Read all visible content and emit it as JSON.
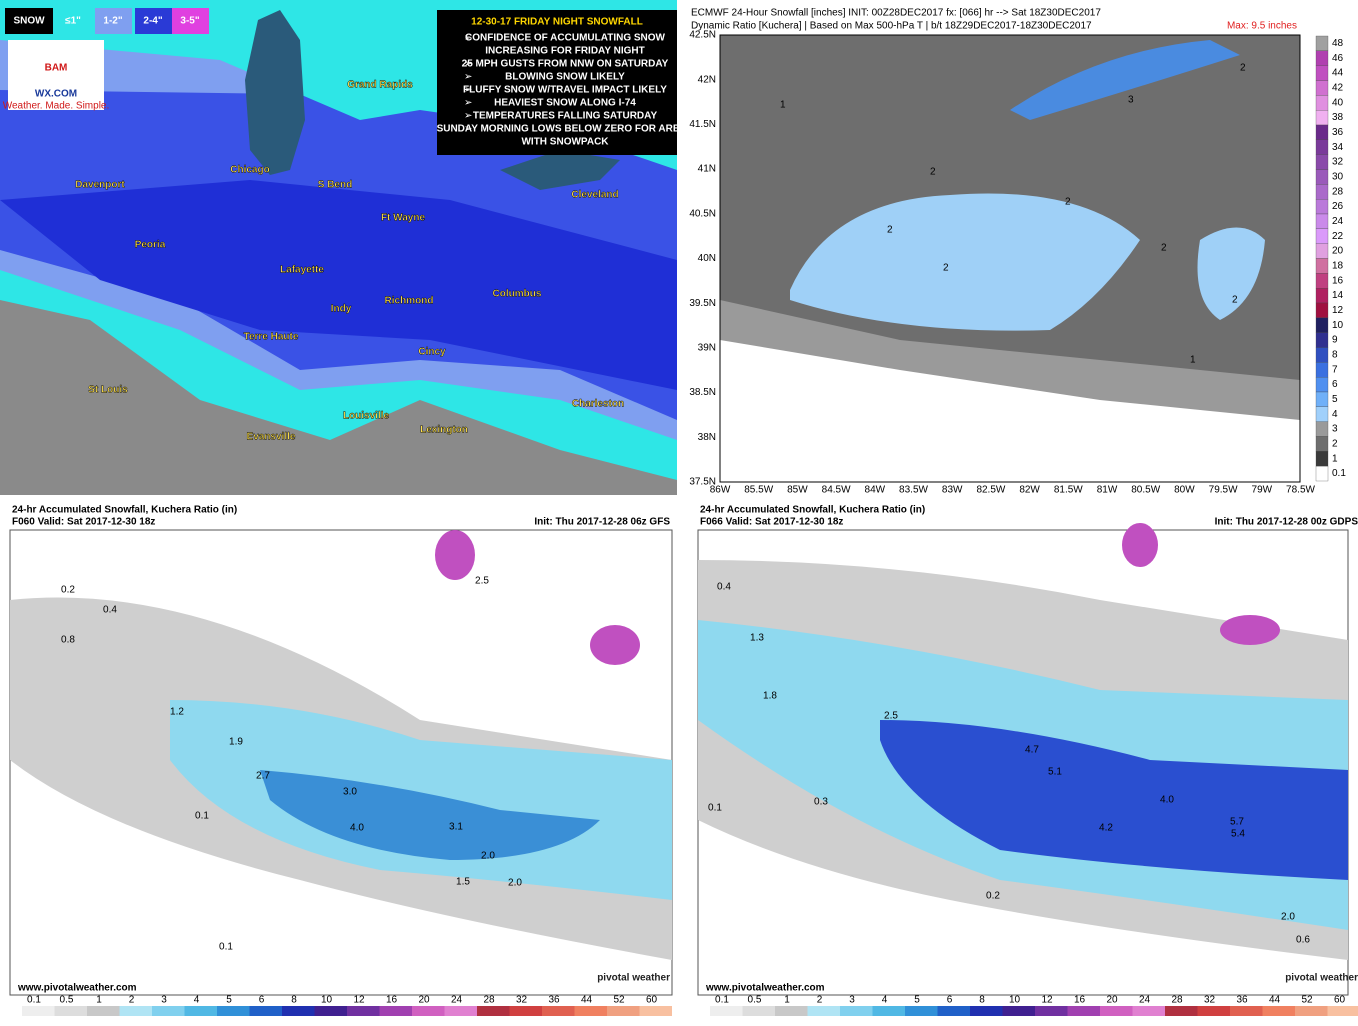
{
  "bam": {
    "legend": [
      "SNOW",
      "≤1\"",
      "1-2\"",
      "2-4\"",
      "3-5\""
    ],
    "logo": "BAM",
    "site": "WX.COM",
    "tagline": "Weather. Made. Simple.",
    "title": "12-30-17 FRIDAY NIGHT SNOWFALL",
    "lines": [
      "CONFIDENCE OF ACCUMULATING SNOW",
      "INCREASING FOR FRIDAY NIGHT",
      "25 MPH GUSTS FROM NNW ON SATURDAY",
      "BLOWING SNOW LIKELY",
      "FLUFFY SNOW W/TRAVEL IMPACT LIKELY",
      "HEAVIEST SNOW ALONG I-74",
      "TEMPERATURES FALLING SATURDAY",
      "SUNDAY MORNING LOWS BELOW ZERO FOR AREAS",
      "WITH SNOWPACK"
    ],
    "cities": [
      "Grand Rapids",
      "Chicago",
      "S Bend",
      "Cleveland",
      "Davenport",
      "Ft Wayne",
      "Peoria",
      "Lafayette",
      "Columbus",
      "Indy",
      "Richmond",
      "Terre Haute",
      "Cincy",
      "St Louis",
      "Charleston",
      "Louisville",
      "Lexington",
      "Evansville"
    ]
  },
  "ecmwf": {
    "title": "ECMWF 24-Hour Snowfall [inches] INIT: 00Z28DEC2017 fx: [066] hr --> Sat 18Z30DEC2017",
    "subtitle": "Dynamic Ratio [Kuchera] | Based on Max 500-hPa T | b/t 18Z29DEC2017-18Z30DEC2017",
    "max": "Max: 9.5 inches",
    "lat": [
      "42.5N",
      "42N",
      "41.5N",
      "41N",
      "40.5N",
      "40N",
      "39.5N",
      "39N",
      "38.5N",
      "38N",
      "37.5N"
    ],
    "lon": [
      "86W",
      "85.5W",
      "85W",
      "84.5W",
      "84W",
      "83.5W",
      "83W",
      "82.5W",
      "82W",
      "81.5W",
      "81W",
      "80.5W",
      "80W",
      "79.5W",
      "79W",
      "78.5W"
    ],
    "scale": [
      48,
      46,
      44,
      42,
      40,
      38,
      36,
      34,
      32,
      30,
      28,
      26,
      24,
      22,
      20,
      18,
      16,
      14,
      12,
      10,
      9,
      8,
      7,
      6,
      5,
      4,
      3,
      2,
      1,
      0.1
    ],
    "labels": [
      "1",
      "2",
      "2",
      "2",
      "2",
      "3",
      "2",
      "1",
      "2",
      "2"
    ]
  },
  "gfs": {
    "title": "24-hr Accumulated Snowfall, Kuchera Ratio (in)",
    "valid": "F060 Valid: Sat 2017-12-30 18z",
    "init": "Init: Thu 2017-12-28 06z GFS",
    "url": "www.pivotalweather.com",
    "brand": "pivotal weather",
    "scale": [
      0.1,
      0.5,
      1,
      2,
      3,
      4,
      5,
      6,
      8,
      10,
      12,
      16,
      20,
      24,
      28,
      32,
      36,
      44,
      52,
      60
    ],
    "labels": [
      "0.2",
      "0.4",
      "0.8",
      "1.2",
      "1.9",
      "2.7",
      "3.0",
      "4.0",
      "3.1",
      "2.0",
      "1.5",
      "2.0",
      "0.1",
      "0.1",
      "2.5"
    ]
  },
  "gdps": {
    "title": "24-hr Accumulated Snowfall, Kuchera Ratio (in)",
    "valid": "F066 Valid: Sat 2017-12-30 18z",
    "init": "Init: Thu 2017-12-28 00z GDPS",
    "url": "www.pivotalweather.com",
    "brand": "pivotal weather",
    "scale": [
      0.1,
      0.5,
      1,
      2,
      3,
      4,
      5,
      6,
      8,
      10,
      12,
      16,
      20,
      24,
      28,
      32,
      36,
      44,
      52,
      60
    ],
    "labels": [
      "0.4",
      "1.3",
      "1.8",
      "2.5",
      "4.7",
      "5.1",
      "4.2",
      "5.7",
      "5.4",
      "4.0",
      "2.0",
      "0.3",
      "0.1",
      "0.2",
      "0.6"
    ]
  }
}
